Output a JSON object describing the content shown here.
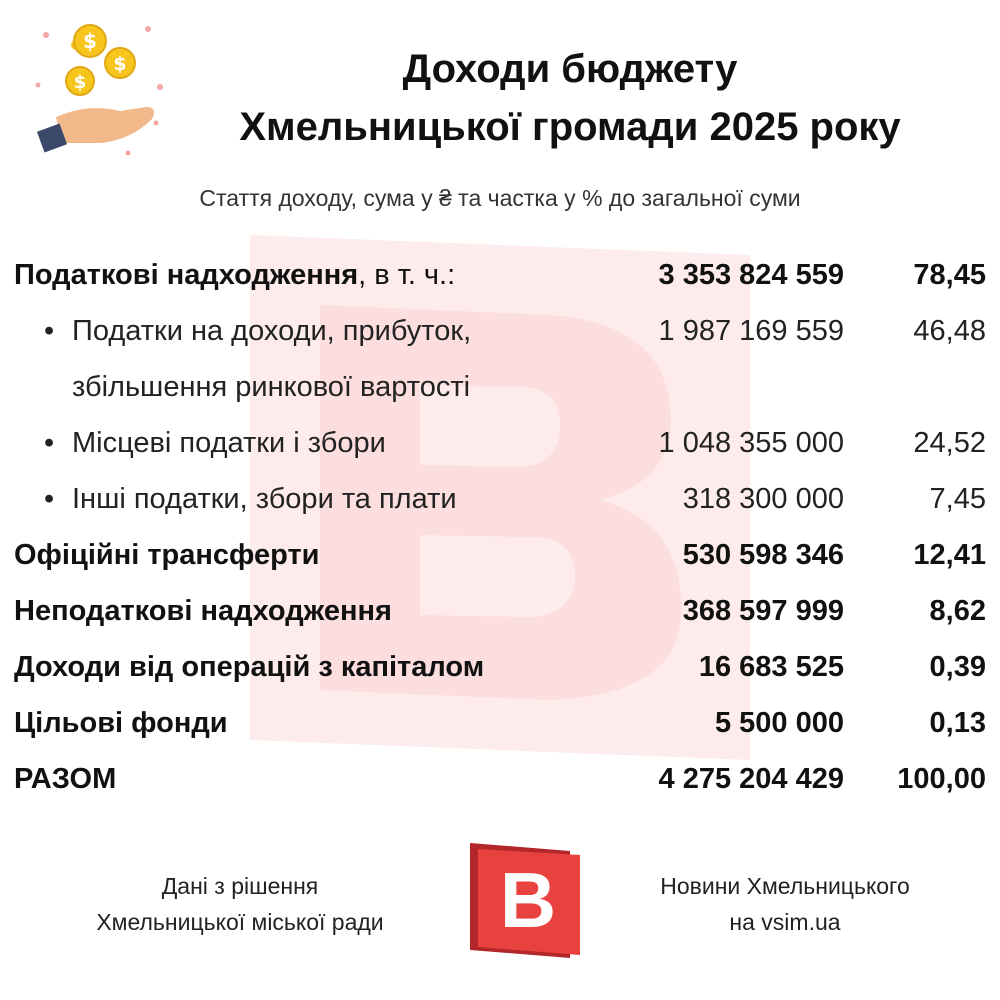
{
  "header": {
    "title_line1": "Доходи бюджету",
    "title_line2": "Хмельницької громади 2025 року",
    "subtitle": "Стаття доходу, сума у ₴ та частка у % до загальної суми",
    "icon": "hand-with-dollar-coins-icon"
  },
  "rows": [
    {
      "label": "Податкові надходження",
      "suffix": ", в т. ч.:",
      "amount": "3 353 824 559",
      "percent": "78,45"
    },
    {
      "label_line1": "Податки на доходи, прибуток,",
      "label_line2": "збільшення ринкової вартості",
      "amount": "1 987 169 559",
      "percent": "46,48"
    },
    {
      "label": "Місцеві податки і збори",
      "amount": "1 048 355 000",
      "percent": "24,52"
    },
    {
      "label": "Інші податки, збори та плати",
      "amount": "318 300 000",
      "percent": "7,45"
    },
    {
      "label": "Офіційні трансферти",
      "amount": "530 598 346",
      "percent": "12,41"
    },
    {
      "label": "Неподаткові надходження",
      "amount": "368 597 999",
      "percent": "8,62"
    },
    {
      "label": "Доходи від операцій з капіталом",
      "amount": "16 683 525",
      "percent": "0,39"
    },
    {
      "label": "Цільові фонди",
      "amount": "5 500 000",
      "percent": "0,13"
    },
    {
      "label": "РАЗОМ",
      "amount": "4 275 204 429",
      "percent": "100,00"
    }
  ],
  "footer": {
    "source_line1": "Дані з рішення",
    "source_line2": "Хмельницької міської ради",
    "brand_line1": "Новини Хмельницького",
    "brand_line2": "на vsim.ua",
    "logo_letter": "B"
  },
  "colors": {
    "brand_red": "#e8423f",
    "brand_dark_red": "#b3262a",
    "watermark": "#fbe3e2",
    "coin_gold": "#f7c51e",
    "hand_skin": "#f2b98a",
    "sleeve": "#3b4a6b"
  }
}
